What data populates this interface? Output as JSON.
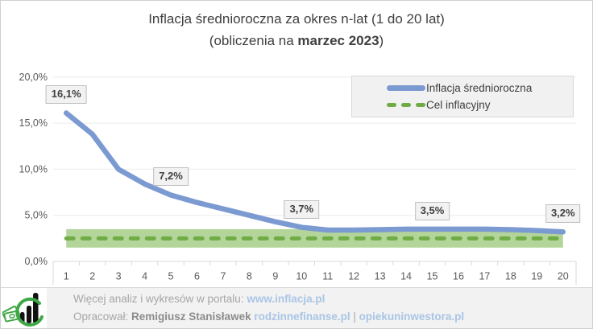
{
  "title": {
    "line1": "Inflacja średnioroczna za okres n-lat (1 do 20 lat)",
    "line2_prefix": "(obliczenia na ",
    "line2_bold": "marzec 2023",
    "line2_suffix": ")"
  },
  "legend": {
    "items": [
      {
        "label": "Inflacja średnioroczna",
        "swatch": "blue-solid-line"
      },
      {
        "label": "Cel inflacyjny",
        "swatch": "green-dashed-line"
      }
    ]
  },
  "colors": {
    "line_blue": "#7c9ad2",
    "target_green": "#6fac46",
    "band_green": "#afd394",
    "gridline": "#ececec",
    "axis_line": "#d9d9d9",
    "axis_text": "#595959",
    "label_box_bg": "#f2f2f2",
    "label_box_border": "#bfbfbf"
  },
  "chart_data": {
    "type": "line",
    "title": "Inflacja średnioroczna za okres n-lat (1 do 20 lat) (obliczenia na marzec 2023)",
    "x": [
      1,
      2,
      3,
      4,
      5,
      6,
      7,
      8,
      9,
      10,
      11,
      12,
      13,
      14,
      15,
      16,
      17,
      18,
      19,
      20
    ],
    "ylim": [
      0,
      20
    ],
    "grid": true,
    "legend_position": "top-right",
    "y_ticks": [
      {
        "value": 0,
        "label": "0,0%"
      },
      {
        "value": 5,
        "label": "5,0%"
      },
      {
        "value": 10,
        "label": "10,0%"
      },
      {
        "value": 15,
        "label": "15,0%"
      },
      {
        "value": 20,
        "label": "20,0%"
      }
    ],
    "series": [
      {
        "name": "Inflacja średnioroczna",
        "style": "solid",
        "color": "#7c9ad2",
        "values": [
          16.1,
          13.8,
          10.0,
          8.4,
          7.2,
          6.4,
          5.7,
          5.0,
          4.3,
          3.7,
          3.4,
          3.4,
          3.45,
          3.5,
          3.5,
          3.5,
          3.5,
          3.45,
          3.35,
          3.2
        ]
      },
      {
        "name": "Cel inflacyjny",
        "style": "dashed",
        "color": "#6fac46",
        "constant_value": 2.5,
        "band_range": [
          1.5,
          3.5
        ],
        "band_color": "#afd394"
      }
    ],
    "data_labels": [
      {
        "x": 1,
        "label": "16,1%"
      },
      {
        "x": 5,
        "label": "7,2%"
      },
      {
        "x": 10,
        "label": "3,7%"
      },
      {
        "x": 15,
        "label": "3,5%"
      },
      {
        "x": 20,
        "label": "3,2%"
      }
    ]
  },
  "footer": {
    "line1_prefix": "Więcej analiz i wykresów w portalu: ",
    "line1_link": "www.inflacja.pl",
    "line2_prefix": "Opracował: ",
    "line2_name": "Remigiusz Stanisławek",
    "line2_link1": "rodzinnefinanse.pl",
    "line2_sep": " | ",
    "line2_link2": "opiekuninwestora.pl"
  }
}
